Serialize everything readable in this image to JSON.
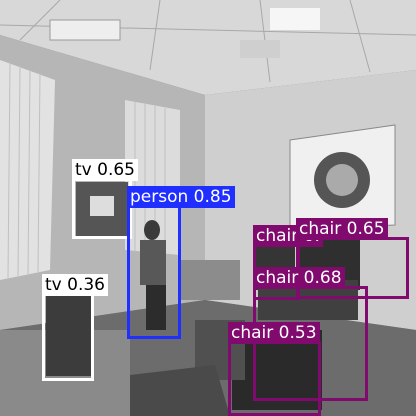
{
  "detections": [
    {
      "name": "tv",
      "label": "tv 0.65",
      "class": "tv",
      "confidence": 0.65,
      "color": "#ffffff",
      "text_color": "#000000"
    },
    {
      "name": "person",
      "label": "person 0.85",
      "class": "person",
      "confidence": 0.85,
      "color": "#1f2fff",
      "text_color": "#ffffff"
    },
    {
      "name": "tv-2",
      "label": "tv 0.36",
      "class": "tv",
      "confidence": 0.36,
      "color": "#ffffff",
      "text_color": "#000000"
    },
    {
      "name": "chair-1",
      "label": "chair 0.65",
      "class": "chair",
      "confidence": 0.65,
      "color": "#800a6e",
      "text_color": "#ffffff"
    },
    {
      "name": "chair-2",
      "label": "chair 0.68",
      "class": "chair",
      "confidence": 0.68,
      "color": "#800a6e",
      "text_color": "#ffffff"
    },
    {
      "name": "chair-3",
      "label": "chair 0.53",
      "class": "chair",
      "confidence": 0.53,
      "color": "#800a6e",
      "text_color": "#ffffff"
    },
    {
      "name": "chair-4",
      "label": "chair 0.",
      "class": "chair",
      "confidence": null,
      "color": "#800a6e",
      "text_color": "#ffffff"
    }
  ]
}
